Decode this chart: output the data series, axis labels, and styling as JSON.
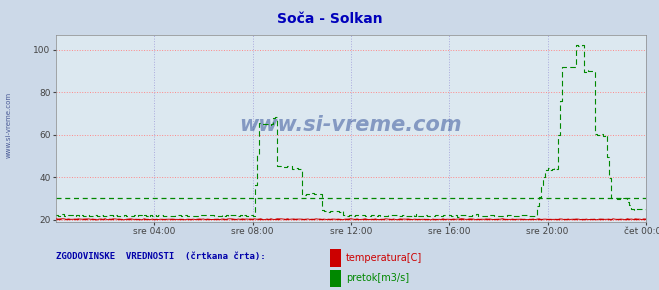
{
  "title": "Soča - Solkan",
  "title_color": "#0000bb",
  "bg_color": "#ccd9e8",
  "plot_bg_color": "#dce8f0",
  "grid_color_h": "#ff8888",
  "grid_color_v": "#aaaadd",
  "yticks": [
    20,
    40,
    60,
    80,
    100
  ],
  "ylim": [
    19,
    107
  ],
  "n_points": 289,
  "xtick_positions": [
    48,
    96,
    144,
    192,
    240,
    288
  ],
  "xtick_labels": [
    "sre 04:00",
    "sre 08:00",
    "sre 12:00",
    "sre 16:00",
    "sre 20:00",
    "čet 00:00"
  ],
  "temp_color": "#cc0000",
  "flow_color": "#008800",
  "hist_temp_value": 20.5,
  "hist_flow_value": 30.0,
  "watermark": "www.si-vreme.com",
  "watermark_color": "#1a3a8a",
  "legend_text": "ZGODOVINSKE  VREDNOSTI  (črtkana  črta):",
  "legend_color": "#0000aa",
  "legend_temp_label": "temperatura[C]",
  "legend_flow_label": "pretok[m3/s]",
  "sidebar_color": "#334488"
}
